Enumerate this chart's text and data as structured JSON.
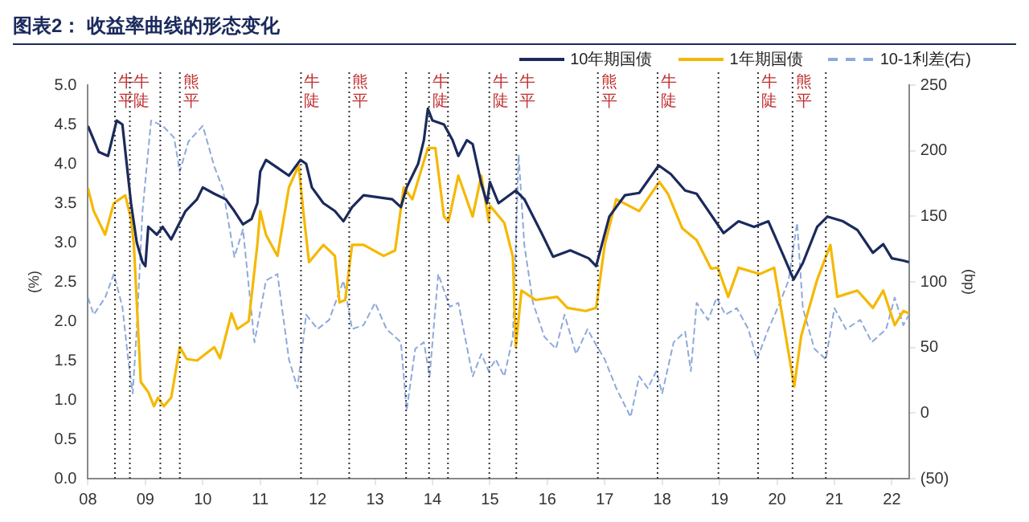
{
  "chart_data": {
    "type": "line",
    "title": "图表2：  收益率曲线的形态变化",
    "ylabel": "(%)",
    "y2label": "(bp)",
    "xlim": [
      2008,
      2022.3
    ],
    "xticks": [
      {
        "value": 2008,
        "label": "08"
      },
      {
        "value": 2009,
        "label": "09"
      },
      {
        "value": 2010,
        "label": "10"
      },
      {
        "value": 2011,
        "label": "11"
      },
      {
        "value": 2012,
        "label": "12"
      },
      {
        "value": 2013,
        "label": "13"
      },
      {
        "value": 2014,
        "label": "14"
      },
      {
        "value": 2015,
        "label": "15"
      },
      {
        "value": 2016,
        "label": "16"
      },
      {
        "value": 2017,
        "label": "17"
      },
      {
        "value": 2018,
        "label": "18"
      },
      {
        "value": 2019,
        "label": "19"
      },
      {
        "value": 2020,
        "label": "20"
      },
      {
        "value": 2021,
        "label": "21"
      },
      {
        "value": 2022,
        "label": "22"
      }
    ],
    "ylim": [
      0,
      5
    ],
    "yticks": [
      {
        "value": 0,
        "label": "0.0"
      },
      {
        "value": 0.5,
        "label": "0.5"
      },
      {
        "value": 1,
        "label": "1.0"
      },
      {
        "value": 1.5,
        "label": "1.5"
      },
      {
        "value": 2,
        "label": "2.0"
      },
      {
        "value": 2.5,
        "label": "2.5"
      },
      {
        "value": 3,
        "label": "3.0"
      },
      {
        "value": 3.5,
        "label": "3.5"
      },
      {
        "value": 4,
        "label": "4.0"
      },
      {
        "value": 4.5,
        "label": "4.5"
      },
      {
        "value": 5,
        "label": "5.0"
      }
    ],
    "y2lim": [
      -50,
      250
    ],
    "y2ticks": [
      {
        "value": -50,
        "label": "(50)"
      },
      0,
      50,
      100,
      150,
      200,
      250
    ],
    "grid": false,
    "legend": "top right",
    "marker": "none",
    "series": [
      {
        "name": "10年期国债",
        "color": "#1b2a5c",
        "line_style": "solid",
        "x": [
          2008,
          2008.19,
          2008.35,
          2008.5,
          2008.6,
          2008.75,
          2008.85,
          2008.95,
          2009.0,
          2009.05,
          2009.2,
          2009.3,
          2009.45,
          2009.7,
          2009.9,
          2010.0,
          2010.2,
          2010.4,
          2010.55,
          2010.7,
          2010.85,
          2010.95,
          2011.0,
          2011.1,
          2011.3,
          2011.5,
          2011.7,
          2011.8,
          2011.9,
          2012.1,
          2012.3,
          2012.45,
          2012.6,
          2012.8,
          2013.0,
          2013.3,
          2013.45,
          2013.55,
          2013.75,
          2013.85,
          2013.92,
          2014.0,
          2014.2,
          2014.35,
          2014.45,
          2014.6,
          2014.7,
          2014.85,
          2014.95,
          2015.0,
          2015.15,
          2015.45,
          2015.6,
          2015.9,
          2016.1,
          2016.4,
          2016.72,
          2016.85,
          2017.08,
          2017.35,
          2017.6,
          2017.94,
          2018.15,
          2018.4,
          2018.6,
          2019.07,
          2019.33,
          2019.6,
          2019.85,
          2020.12,
          2020.29,
          2020.45,
          2020.7,
          2020.88,
          2021.15,
          2021.4,
          2021.67,
          2021.85,
          2022.0,
          2022.2,
          2022.3
        ],
        "values": [
          4.48,
          4.15,
          4.1,
          4.55,
          4.5,
          3.5,
          3.0,
          2.75,
          2.7,
          3.2,
          3.1,
          3.2,
          3.04,
          3.4,
          3.55,
          3.7,
          3.62,
          3.55,
          3.4,
          3.23,
          3.3,
          3.5,
          3.9,
          4.05,
          3.95,
          3.85,
          4.05,
          4.0,
          3.7,
          3.5,
          3.4,
          3.27,
          3.45,
          3.6,
          3.58,
          3.55,
          3.45,
          3.7,
          4.0,
          4.3,
          4.7,
          4.55,
          4.5,
          4.3,
          4.1,
          4.3,
          4.25,
          3.75,
          3.5,
          3.77,
          3.5,
          3.66,
          3.55,
          3.12,
          2.82,
          2.9,
          2.8,
          2.7,
          3.33,
          3.6,
          3.63,
          3.98,
          3.87,
          3.66,
          3.62,
          3.12,
          3.27,
          3.2,
          3.27,
          2.82,
          2.53,
          2.74,
          3.2,
          3.33,
          3.27,
          3.16,
          2.87,
          2.98,
          2.8,
          2.77,
          2.75
        ]
      },
      {
        "name": "1年期国债",
        "color": "#f5b800",
        "line_style": "solid",
        "x": [
          2008,
          2008.1,
          2008.3,
          2008.45,
          2008.55,
          2008.65,
          2008.75,
          2008.8,
          2008.92,
          2009.05,
          2009.15,
          2009.22,
          2009.32,
          2009.45,
          2009.6,
          2009.72,
          2009.9,
          2010.2,
          2010.3,
          2010.5,
          2010.6,
          2010.8,
          2010.95,
          2011.0,
          2011.1,
          2011.3,
          2011.5,
          2011.67,
          2011.75,
          2011.85,
          2012.1,
          2012.3,
          2012.38,
          2012.48,
          2012.6,
          2012.8,
          2013.15,
          2013.35,
          2013.5,
          2013.65,
          2013.92,
          2014.05,
          2014.2,
          2014.28,
          2014.45,
          2014.7,
          2014.85,
          2014.98,
          2015.0,
          2015.25,
          2015.4,
          2015.45,
          2015.55,
          2015.8,
          2016.17,
          2016.35,
          2016.67,
          2016.85,
          2017.0,
          2017.2,
          2017.6,
          2017.95,
          2018.1,
          2018.35,
          2018.6,
          2018.85,
          2018.97,
          2019.15,
          2019.33,
          2019.7,
          2019.95,
          2020.12,
          2020.3,
          2020.42,
          2020.7,
          2020.93,
          2021.05,
          2021.4,
          2021.67,
          2021.85,
          2022.05,
          2022.2,
          2022.3
        ],
        "values": [
          3.69,
          3.4,
          3.1,
          3.5,
          3.55,
          3.6,
          3.3,
          2.97,
          1.23,
          1.1,
          0.92,
          1.03,
          0.92,
          1.03,
          1.67,
          1.52,
          1.5,
          1.67,
          1.53,
          2.1,
          1.9,
          2.0,
          2.97,
          3.4,
          3.1,
          2.83,
          3.7,
          3.98,
          3.4,
          2.75,
          2.97,
          2.83,
          2.24,
          2.27,
          2.97,
          2.97,
          2.83,
          2.9,
          3.7,
          3.55,
          4.2,
          4.2,
          3.33,
          3.27,
          3.85,
          3.33,
          3.85,
          3.27,
          3.47,
          3.25,
          2.82,
          1.67,
          2.39,
          2.27,
          2.31,
          2.17,
          2.13,
          2.17,
          2.97,
          3.55,
          3.4,
          3.77,
          3.62,
          3.18,
          3.03,
          2.67,
          2.68,
          2.31,
          2.68,
          2.6,
          2.68,
          1.95,
          1.17,
          1.81,
          2.53,
          2.97,
          2.31,
          2.39,
          2.17,
          2.39,
          1.95,
          2.13,
          2.1
        ]
      },
      {
        "name": "10-1利差(右)",
        "color": "#8ea9db",
        "line_style": "dashed",
        "axis": "y2",
        "x": [
          2008,
          2008.1,
          2008.3,
          2008.45,
          2008.6,
          2008.7,
          2008.78,
          2008.85,
          2008.95,
          2009.1,
          2009.3,
          2009.5,
          2009.6,
          2009.75,
          2010.0,
          2010.2,
          2010.35,
          2010.55,
          2010.7,
          2010.9,
          2011.1,
          2011.3,
          2011.5,
          2011.65,
          2011.8,
          2012.0,
          2012.2,
          2012.45,
          2012.6,
          2012.8,
          2013.0,
          2013.2,
          2013.45,
          2013.55,
          2013.7,
          2013.85,
          2013.95,
          2014.1,
          2014.3,
          2014.45,
          2014.7,
          2014.85,
          2014.98,
          2015.1,
          2015.25,
          2015.4,
          2015.5,
          2015.6,
          2015.75,
          2015.95,
          2016.15,
          2016.3,
          2016.5,
          2016.7,
          2016.85,
          2017.0,
          2017.2,
          2017.45,
          2017.6,
          2017.75,
          2017.9,
          2018.0,
          2018.2,
          2018.4,
          2018.5,
          2018.6,
          2018.8,
          2018.95,
          2019.1,
          2019.3,
          2019.5,
          2019.65,
          2019.85,
          2020.05,
          2020.2,
          2020.35,
          2020.45,
          2020.65,
          2020.85,
          2021.0,
          2021.2,
          2021.45,
          2021.65,
          2021.9,
          2022.05,
          2022.2,
          2022.3
        ],
        "values": [
          88,
          75,
          88,
          106,
          81,
          41,
          15,
          64,
          154,
          223,
          219,
          210,
          184,
          207,
          219,
          188,
          171,
          119,
          140,
          54,
          101,
          106,
          41,
          19,
          75,
          64,
          71,
          101,
          64,
          67,
          84,
          64,
          54,
          2,
          49,
          54,
          28,
          106,
          81,
          84,
          28,
          45,
          32,
          41,
          28,
          58,
          197,
          128,
          84,
          58,
          49,
          75,
          45,
          64,
          52,
          41,
          19,
          -3,
          28,
          19,
          32,
          15,
          54,
          62,
          32,
          84,
          71,
          88,
          75,
          80,
          64,
          41,
          64,
          84,
          101,
          145,
          80,
          49,
          41,
          80,
          64,
          71,
          54,
          64,
          88,
          67,
          75
        ]
      }
    ],
    "ref_lines": [
      {
        "axis": "x",
        "value": 2008.47,
        "label": "牛平",
        "line_style": "dotted"
      },
      {
        "axis": "x",
        "value": 2008.73,
        "label": "牛陡",
        "line_style": "dotted"
      },
      {
        "axis": "x",
        "value": 2009.26,
        "line_style": "dotted"
      },
      {
        "axis": "x",
        "value": 2009.6,
        "label": "熊平",
        "line_style": "dotted"
      },
      {
        "axis": "x",
        "value": 2011.71,
        "label": "牛陡",
        "line_style": "dotted"
      },
      {
        "axis": "x",
        "value": 2012.55,
        "label": "熊平",
        "line_style": "dotted"
      },
      {
        "axis": "x",
        "value": 2013.54,
        "line_style": "dotted"
      },
      {
        "axis": "x",
        "value": 2013.94,
        "label": "牛陡",
        "line_style": "dotted"
      },
      {
        "axis": "x",
        "value": 2014.27,
        "line_style": "dotted"
      },
      {
        "axis": "x",
        "value": 2014.99,
        "label": "牛陡",
        "line_style": "dotted"
      },
      {
        "axis": "x",
        "value": 2015.46,
        "label": "牛平",
        "line_style": "dotted"
      },
      {
        "axis": "x",
        "value": 2016.88,
        "label": "熊平",
        "line_style": "dotted"
      },
      {
        "axis": "x",
        "value": 2017.92,
        "label": "牛陡",
        "line_style": "dotted"
      },
      {
        "axis": "x",
        "value": 2018.98,
        "line_style": "dotted"
      },
      {
        "axis": "x",
        "value": 2019.67,
        "label": "牛陡",
        "line_style": "dotted"
      },
      {
        "axis": "x",
        "value": 2020.27,
        "label": "熊平",
        "line_style": "dotted"
      },
      {
        "axis": "x",
        "value": 2020.85,
        "line_style": "dotted"
      }
    ]
  }
}
